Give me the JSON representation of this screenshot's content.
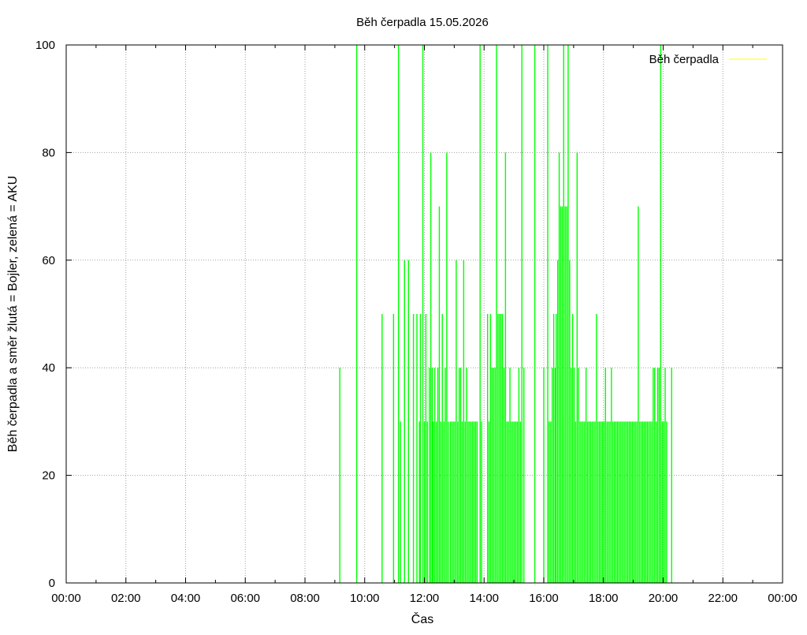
{
  "chart_data": {
    "type": "bar",
    "title": "Běh čerpadla 15.05.2026",
    "xlabel": "Čas",
    "ylabel": "Běh čerpadla a směr žlutá = Bojler, zelená = AKU",
    "xlim": [
      "00:00",
      "24:00"
    ],
    "ylim": [
      0,
      100
    ],
    "x_ticks": [
      "00:00",
      "02:00",
      "04:00",
      "06:00",
      "08:00",
      "10:00",
      "12:00",
      "14:00",
      "16:00",
      "18:00",
      "20:00",
      "22:00",
      "00:00"
    ],
    "y_ticks": [
      0,
      20,
      40,
      60,
      80,
      100
    ],
    "grid": true,
    "legend": {
      "position": "top-right",
      "entries": [
        {
          "label": "Běh čerpadla",
          "color": "#ffff00"
        }
      ]
    },
    "colors": {
      "aku": "#00ff00",
      "bojler": "#ffff00",
      "grid": "#a0a0a0"
    },
    "series": [
      {
        "name": "Běh čerpadla",
        "color": "#00ff00",
        "points": [
          [
            "09:10",
            40
          ],
          [
            "09:44",
            100
          ],
          [
            "10:35",
            50
          ],
          [
            "10:58",
            50
          ],
          [
            "11:08",
            100
          ],
          [
            "11:12",
            30
          ],
          [
            "11:20",
            60
          ],
          [
            "11:28",
            60
          ],
          [
            "11:38",
            50
          ],
          [
            "11:45",
            50
          ],
          [
            "11:50",
            30
          ],
          [
            "11:52",
            50
          ],
          [
            "11:57",
            100
          ],
          [
            "12:00",
            30
          ],
          [
            "12:03",
            50
          ],
          [
            "12:06",
            30
          ],
          [
            "12:10",
            40
          ],
          [
            "12:13",
            80
          ],
          [
            "12:16",
            40
          ],
          [
            "12:18",
            30
          ],
          [
            "12:21",
            40
          ],
          [
            "12:24",
            30
          ],
          [
            "12:27",
            40
          ],
          [
            "12:30",
            70
          ],
          [
            "12:33",
            30
          ],
          [
            "12:36",
            50
          ],
          [
            "12:39",
            30
          ],
          [
            "12:42",
            40
          ],
          [
            "12:45",
            80
          ],
          [
            "12:48",
            30
          ],
          [
            "12:52",
            30
          ],
          [
            "12:55",
            30
          ],
          [
            "12:58",
            30
          ],
          [
            "13:01",
            30
          ],
          [
            "13:04",
            60
          ],
          [
            "13:07",
            30
          ],
          [
            "13:10",
            40
          ],
          [
            "13:13",
            40
          ],
          [
            "13:16",
            30
          ],
          [
            "13:19",
            60
          ],
          [
            "13:22",
            30
          ],
          [
            "13:25",
            40
          ],
          [
            "13:28",
            30
          ],
          [
            "13:31",
            30
          ],
          [
            "13:34",
            30
          ],
          [
            "13:37",
            30
          ],
          [
            "13:40",
            30
          ],
          [
            "13:43",
            30
          ],
          [
            "13:46",
            30
          ],
          [
            "13:52",
            100
          ],
          [
            "13:55",
            30
          ],
          [
            "14:07",
            50
          ],
          [
            "14:10",
            30
          ],
          [
            "14:13",
            50
          ],
          [
            "14:16",
            40
          ],
          [
            "14:19",
            40
          ],
          [
            "14:22",
            40
          ],
          [
            "14:25",
            100
          ],
          [
            "14:28",
            50
          ],
          [
            "14:31",
            50
          ],
          [
            "14:34",
            50
          ],
          [
            "14:37",
            50
          ],
          [
            "14:40",
            40
          ],
          [
            "14:43",
            80
          ],
          [
            "14:46",
            30
          ],
          [
            "14:49",
            30
          ],
          [
            "14:52",
            40
          ],
          [
            "14:55",
            30
          ],
          [
            "14:58",
            30
          ],
          [
            "15:01",
            30
          ],
          [
            "15:04",
            30
          ],
          [
            "15:07",
            30
          ],
          [
            "15:10",
            40
          ],
          [
            "15:13",
            30
          ],
          [
            "15:16",
            100
          ],
          [
            "15:20",
            40
          ],
          [
            "15:42",
            100
          ],
          [
            "16:00",
            40
          ],
          [
            "16:08",
            100
          ],
          [
            "16:11",
            30
          ],
          [
            "16:14",
            30
          ],
          [
            "16:17",
            40
          ],
          [
            "16:20",
            50
          ],
          [
            "16:23",
            40
          ],
          [
            "16:25",
            50
          ],
          [
            "16:28",
            60
          ],
          [
            "16:31",
            80
          ],
          [
            "16:34",
            70
          ],
          [
            "16:37",
            70
          ],
          [
            "16:40",
            100
          ],
          [
            "16:43",
            70
          ],
          [
            "16:46",
            70
          ],
          [
            "16:49",
            100
          ],
          [
            "16:52",
            60
          ],
          [
            "16:55",
            40
          ],
          [
            "16:58",
            50
          ],
          [
            "17:01",
            40
          ],
          [
            "17:04",
            30
          ],
          [
            "17:07",
            80
          ],
          [
            "17:10",
            40
          ],
          [
            "17:13",
            30
          ],
          [
            "17:16",
            30
          ],
          [
            "17:19",
            30
          ],
          [
            "17:22",
            30
          ],
          [
            "17:25",
            40
          ],
          [
            "17:28",
            30
          ],
          [
            "17:31",
            30
          ],
          [
            "17:34",
            30
          ],
          [
            "17:37",
            30
          ],
          [
            "17:40",
            30
          ],
          [
            "17:43",
            30
          ],
          [
            "17:46",
            50
          ],
          [
            "17:49",
            30
          ],
          [
            "17:52",
            30
          ],
          [
            "17:55",
            30
          ],
          [
            "17:58",
            30
          ],
          [
            "18:01",
            30
          ],
          [
            "18:04",
            40
          ],
          [
            "18:07",
            30
          ],
          [
            "18:10",
            30
          ],
          [
            "18:13",
            30
          ],
          [
            "18:16",
            40
          ],
          [
            "18:19",
            30
          ],
          [
            "18:22",
            30
          ],
          [
            "18:25",
            30
          ],
          [
            "18:28",
            30
          ],
          [
            "18:31",
            30
          ],
          [
            "18:34",
            30
          ],
          [
            "18:37",
            30
          ],
          [
            "18:40",
            30
          ],
          [
            "18:43",
            30
          ],
          [
            "18:46",
            30
          ],
          [
            "18:49",
            30
          ],
          [
            "18:52",
            30
          ],
          [
            "18:55",
            30
          ],
          [
            "18:58",
            30
          ],
          [
            "19:01",
            30
          ],
          [
            "19:04",
            30
          ],
          [
            "19:07",
            30
          ],
          [
            "19:10",
            70
          ],
          [
            "19:13",
            30
          ],
          [
            "19:16",
            30
          ],
          [
            "19:19",
            30
          ],
          [
            "19:22",
            30
          ],
          [
            "19:25",
            30
          ],
          [
            "19:28",
            30
          ],
          [
            "19:31",
            30
          ],
          [
            "19:34",
            30
          ],
          [
            "19:37",
            30
          ],
          [
            "19:40",
            40
          ],
          [
            "19:43",
            40
          ],
          [
            "19:46",
            30
          ],
          [
            "19:49",
            40
          ],
          [
            "19:52",
            40
          ],
          [
            "19:55",
            100
          ],
          [
            "19:58",
            30
          ],
          [
            "20:01",
            30
          ],
          [
            "20:04",
            40
          ],
          [
            "20:07",
            30
          ],
          [
            "20:17",
            40
          ]
        ]
      }
    ]
  }
}
